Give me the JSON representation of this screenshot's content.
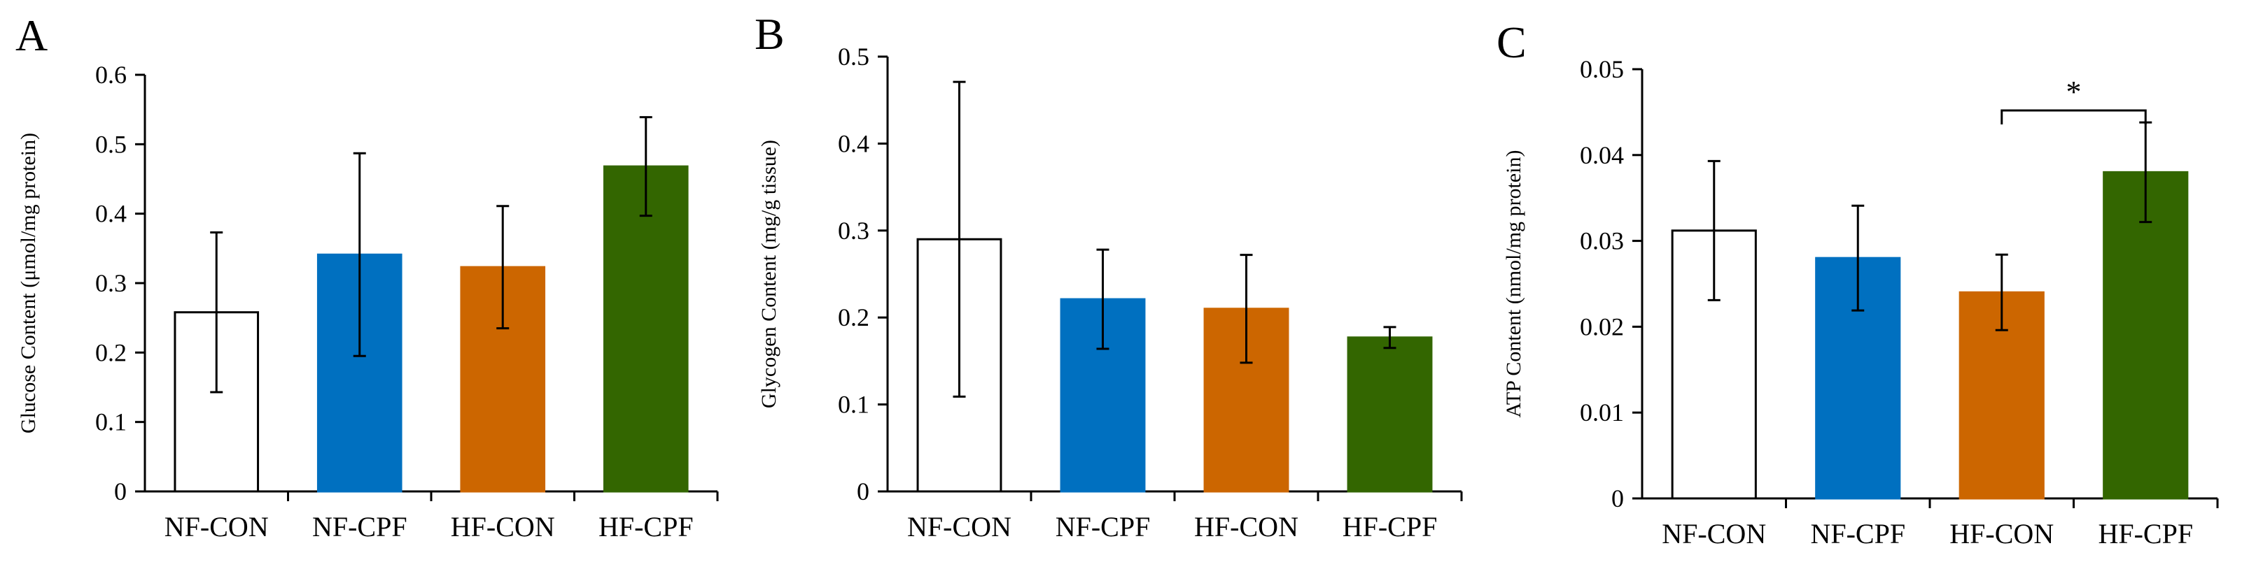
{
  "chart_data": [
    {
      "type": "bar",
      "panel": "A",
      "ylabel": "Glucose Content (μmol/mg protein)",
      "ylim": [
        0,
        0.6
      ],
      "yticks": [
        "0",
        "0.1",
        "0.2",
        "0.3",
        "0.4",
        "0.5",
        "0.6"
      ],
      "categories": [
        "NF-CON",
        "NF-CPF",
        "HF-CON",
        "HF-CPF"
      ],
      "values": [
        0.258,
        0.341,
        0.323,
        0.468
      ],
      "errors": [
        0.115,
        0.146,
        0.088,
        0.071
      ],
      "colors": [
        "#ffffff",
        "#0070c0",
        "#cc6600",
        "#336600"
      ],
      "significance": []
    },
    {
      "type": "bar",
      "panel": "B",
      "ylabel": "Glycogen Content (mg/g tissue)",
      "ylim": [
        0,
        0.5
      ],
      "yticks": [
        "0",
        "0.1",
        "0.2",
        "0.3",
        "0.4",
        "0.5"
      ],
      "categories": [
        "NF-CON",
        "NF-CPF",
        "HF-CON",
        "HF-CPF"
      ],
      "values": [
        0.29,
        0.221,
        0.21,
        0.177
      ],
      "errors": [
        0.181,
        0.057,
        0.062,
        0.012
      ],
      "colors": [
        "#ffffff",
        "#0070c0",
        "#cc6600",
        "#336600"
      ],
      "significance": []
    },
    {
      "type": "bar",
      "panel": "C",
      "ylabel": "ATP Content (nmol/mg protein)",
      "ylim": [
        0,
        0.05
      ],
      "yticks": [
        "0",
        "0.01",
        "0.02",
        "0.03",
        "0.04",
        "0.05"
      ],
      "categories": [
        "NF-CON",
        "NF-CPF",
        "HF-CON",
        "HF-CPF"
      ],
      "values": [
        0.0312,
        0.028,
        0.024,
        0.038
      ],
      "errors": [
        0.0081,
        0.0061,
        0.0044,
        0.0058
      ],
      "colors": [
        "#ffffff",
        "#0070c0",
        "#cc6600",
        "#336600"
      ],
      "significance": [
        {
          "from": 2,
          "to": 3,
          "label": "*",
          "y": 0.0452
        }
      ]
    }
  ]
}
